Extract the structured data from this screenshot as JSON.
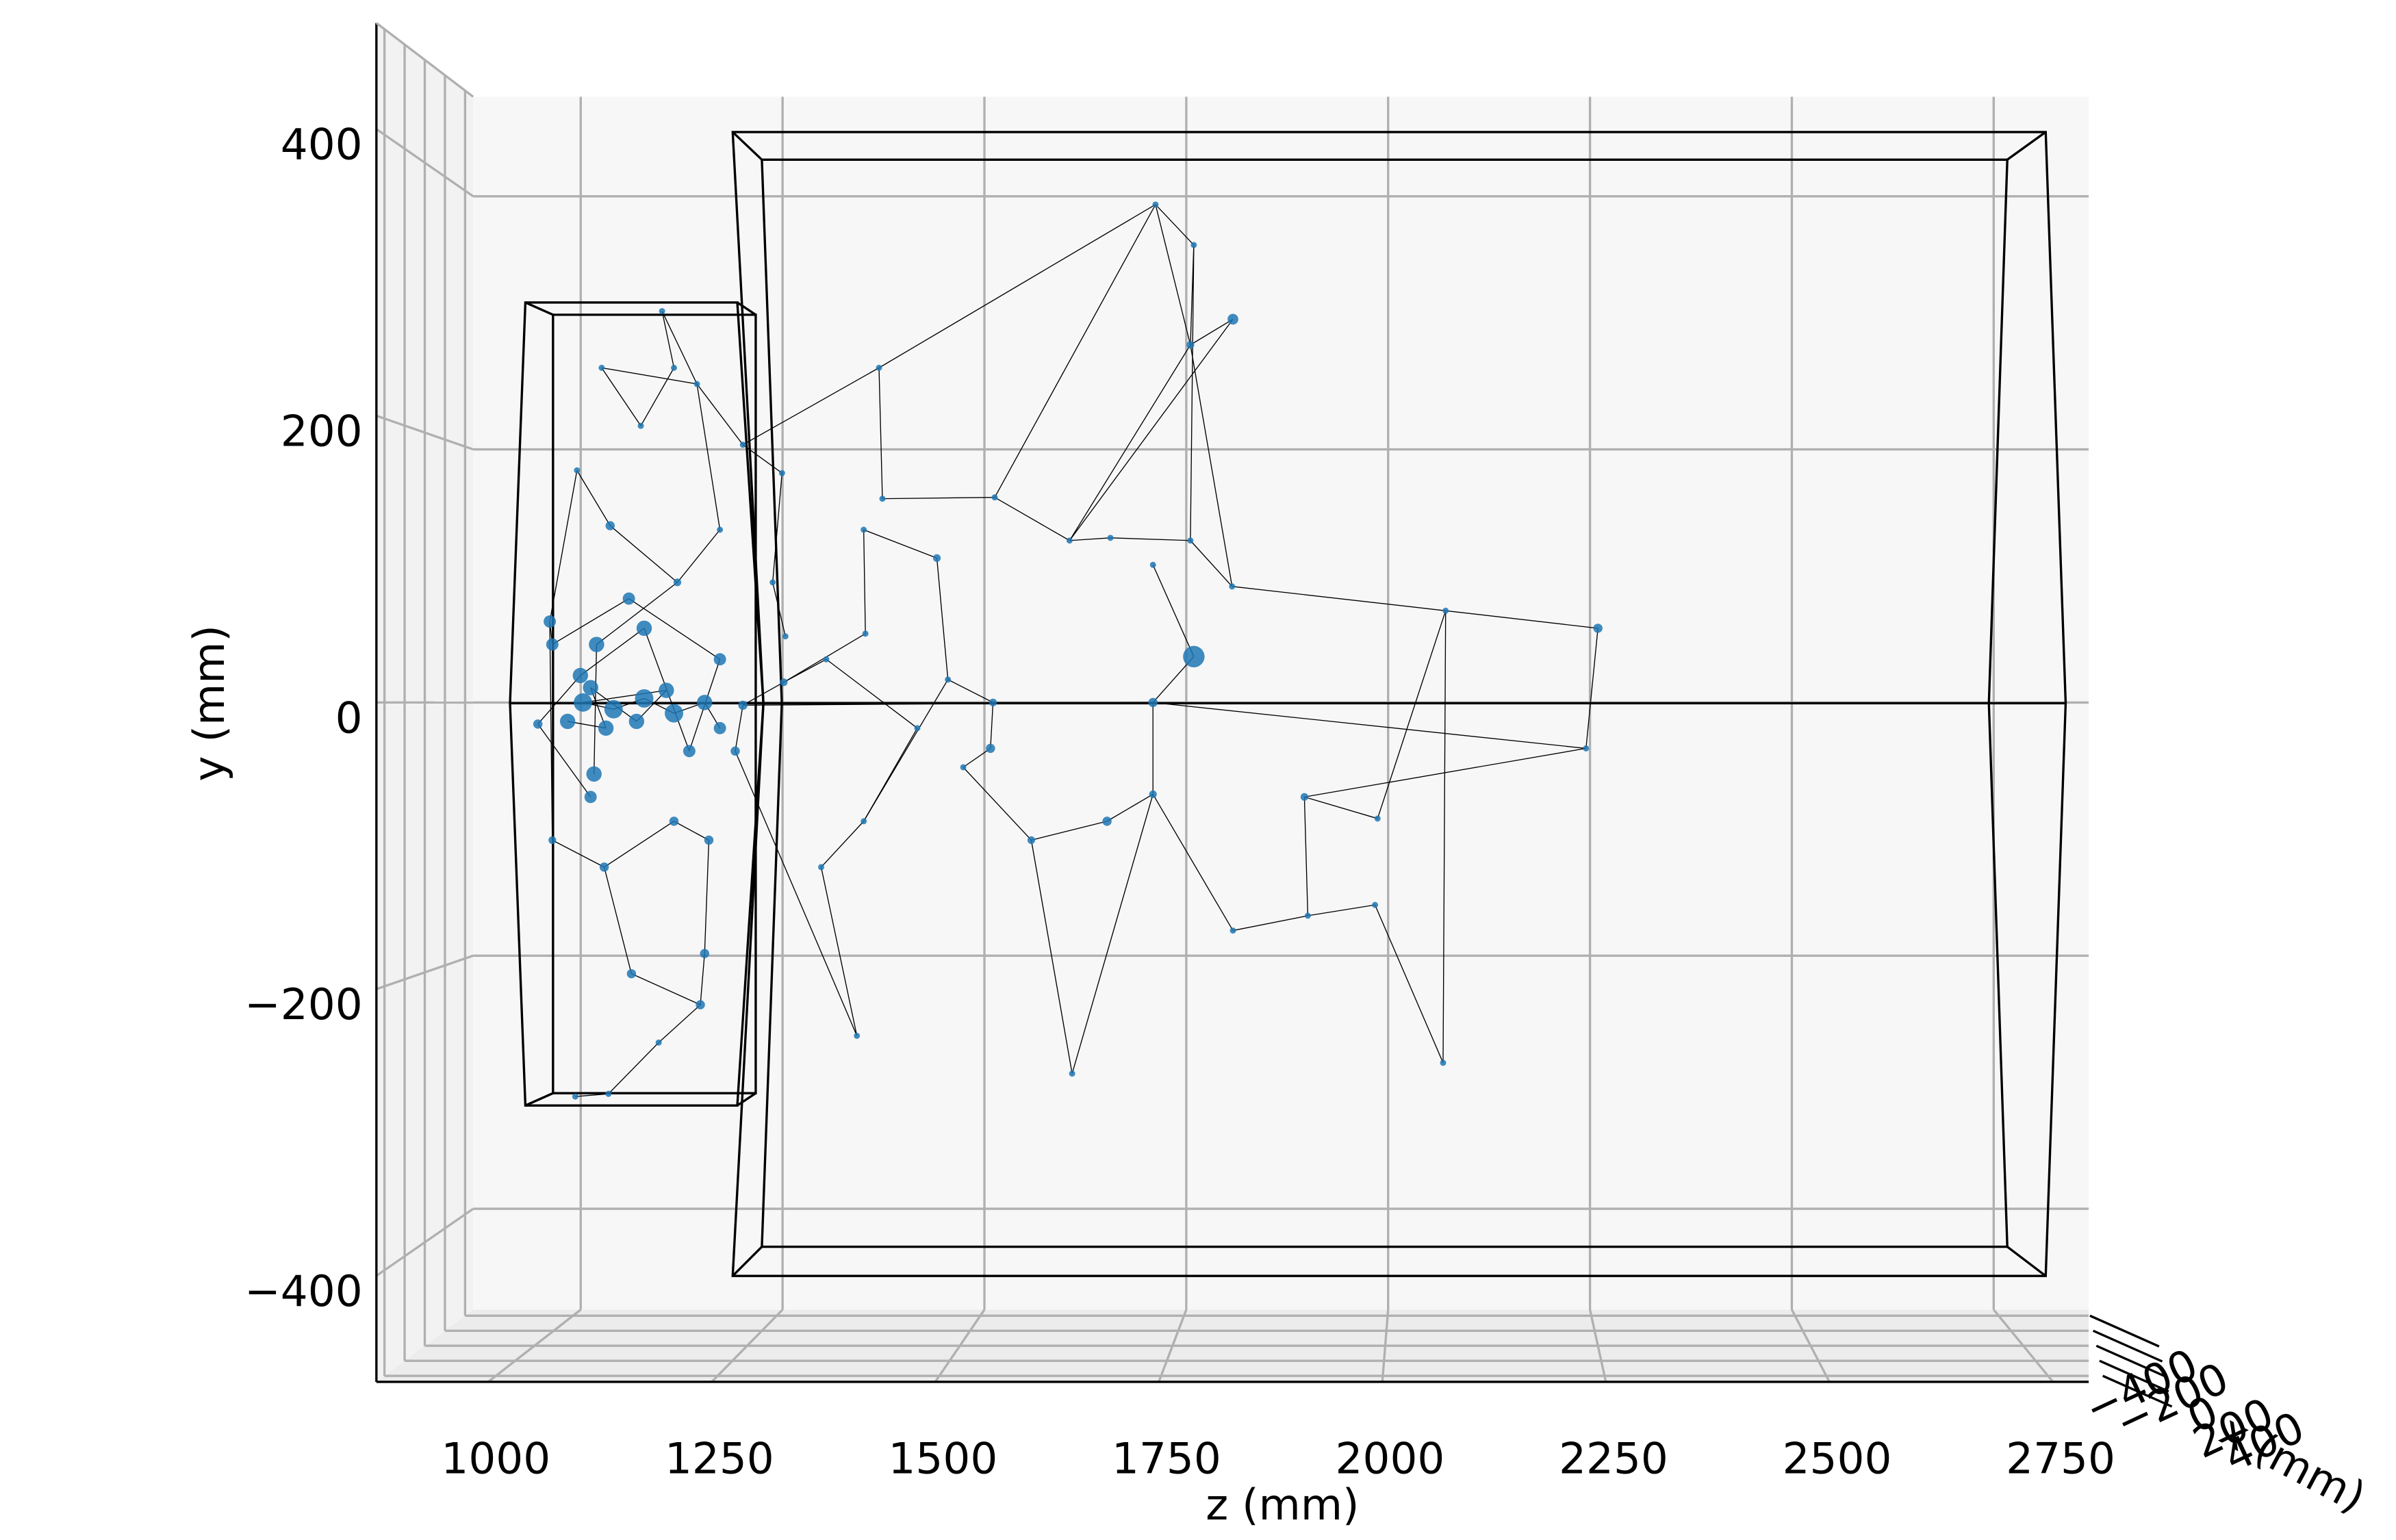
{
  "chart_data": {
    "type": "scatter3d",
    "xlabel": "z (mm)",
    "ylabel": "y (mm)",
    "depth_label": "x (mm)",
    "xlim": [
      875,
      2790
    ],
    "ylim": [
      -474,
      474
    ],
    "depth_lim": [
      -480,
      480
    ],
    "xticks": [
      1000,
      1250,
      1500,
      1750,
      2000,
      2250,
      2500,
      2750
    ],
    "yticks": [
      {
        "value": -400,
        "label": "−400"
      },
      {
        "value": -200,
        "label": "−200"
      },
      0,
      200,
      400
    ],
    "depth_ticks": [
      {
        "value": -400,
        "label": "−400"
      },
      {
        "value": -200,
        "label": "−200"
      },
      0,
      200,
      400
    ],
    "grid": true,
    "color": "#1f77b4",
    "edge_color": "#000000",
    "x": [
      1821,
      1775,
      1730,
      1771,
      1775,
      1677,
      1629,
      1541,
      1473,
      1405,
      1387,
      1409,
      1820,
      1771,
      1727,
      2071,
      2250,
      2236,
      2068,
      1988,
      1909,
      1905,
      1991,
      1821,
      1632,
      1584,
      1673,
      1727,
      1727,
      1539,
      1536,
      1504,
      1450,
      1387,
      1379,
      1337,
      1293,
      1343,
      1389,
      1486,
      1295,
      1291,
      1245,
      1280,
      1191,
      1150,
      1164,
      1125,
      1079,
      1050,
      1089,
      1168,
      1218,
      1018,
      1021,
      1082,
      1114,
      1195,
      1200,
      1205,
      1164,
      1048,
      1087,
      1146,
      1236,
      1245,
      1066,
      1004,
      1054,
      1129,
      1182,
      1218,
      1111,
      1021,
      1057,
      1093,
      1129,
      1164,
      1039,
      1084,
      1066,
      1120,
      1155,
      1200,
      1218,
      1070,
      1073
    ],
    "values": [
      284,
      339,
      369,
      265,
      34,
      122,
      120,
      152,
      107,
      248,
      128,
      151,
      86,
      120,
      102,
      68,
      55,
      -34,
      -267,
      -150,
      -158,
      -70,
      -86,
      -169,
      -275,
      -102,
      -88,
      -68,
      0,
      0,
      -34,
      -48,
      -19,
      -88,
      -247,
      -122,
      15,
      32,
      51,
      17,
      49,
      170,
      191,
      89,
      236,
      290,
      248,
      205,
      248,
      172,
      131,
      89,
      128,
      60,
      -102,
      -122,
      -201,
      -224,
      -186,
      -102,
      -88,
      -292,
      -290,
      -252,
      -36,
      -2,
      -70,
      -16,
      20,
      55,
      -36,
      32,
      77,
      43,
      0,
      -5,
      3,
      -8,
      -14,
      -19,
      11,
      -14,
      9,
      0,
      -19,
      -53,
      43
    ],
    "sizes": [
      3.5,
      2,
      2,
      2.5,
      7,
      2,
      2,
      2,
      2.5,
      2,
      2,
      2,
      2,
      2,
      2,
      2,
      3,
      2,
      2,
      2,
      2,
      2.5,
      2,
      2,
      2,
      2.5,
      3,
      2.5,
      3,
      2.5,
      3,
      2,
      2,
      2,
      2,
      2,
      2.5,
      2,
      2,
      2,
      2,
      2,
      2,
      2,
      2,
      2,
      2,
      2,
      2,
      2,
      3,
      2.5,
      2,
      4,
      2.5,
      3,
      3,
      3,
      3,
      3,
      3,
      2,
      2,
      2,
      3,
      3,
      4,
      3,
      5,
      5,
      4,
      4,
      4,
      4,
      6,
      6,
      6,
      6,
      5,
      5,
      5,
      5,
      5,
      5,
      4,
      5,
      5
    ],
    "edges": [
      [
        0,
        3
      ],
      [
        3,
        2
      ],
      [
        2,
        1
      ],
      [
        1,
        3
      ],
      [
        2,
        9
      ],
      [
        2,
        7
      ],
      [
        3,
        6
      ],
      [
        0,
        6
      ],
      [
        1,
        13
      ],
      [
        9,
        42
      ],
      [
        9,
        11
      ],
      [
        10,
        8
      ],
      [
        11,
        7
      ],
      [
        7,
        6
      ],
      [
        6,
        5
      ],
      [
        5,
        13
      ],
      [
        13,
        12
      ],
      [
        14,
        4
      ],
      [
        4,
        28
      ],
      [
        28,
        27
      ],
      [
        28,
        29
      ],
      [
        29,
        30
      ],
      [
        30,
        31
      ],
      [
        31,
        25
      ],
      [
        25,
        24
      ],
      [
        24,
        27
      ],
      [
        27,
        23
      ],
      [
        23,
        20
      ],
      [
        20,
        19
      ],
      [
        19,
        18
      ],
      [
        18,
        15
      ],
      [
        15,
        16
      ],
      [
        16,
        17
      ],
      [
        17,
        21
      ],
      [
        21,
        22
      ],
      [
        22,
        15
      ],
      [
        15,
        12
      ],
      [
        20,
        21
      ],
      [
        28,
        17
      ],
      [
        26,
        27
      ],
      [
        26,
        25
      ],
      [
        8,
        39
      ],
      [
        39,
        29
      ],
      [
        32,
        33
      ],
      [
        33,
        35
      ],
      [
        35,
        34
      ],
      [
        34,
        64
      ],
      [
        32,
        37
      ],
      [
        37,
        36
      ],
      [
        36,
        38
      ],
      [
        38,
        10
      ],
      [
        40,
        43
      ],
      [
        43,
        41
      ],
      [
        41,
        42
      ],
      [
        42,
        44
      ],
      [
        44,
        45
      ],
      [
        45,
        46
      ],
      [
        46,
        47
      ],
      [
        47,
        48
      ],
      [
        48,
        44
      ],
      [
        49,
        50
      ],
      [
        50,
        51
      ],
      [
        51,
        52
      ],
      [
        52,
        44
      ],
      [
        53,
        49
      ],
      [
        53,
        54
      ],
      [
        54,
        55
      ],
      [
        55,
        56
      ],
      [
        56,
        57
      ],
      [
        57,
        58
      ],
      [
        58,
        59
      ],
      [
        59,
        60
      ],
      [
        60,
        55
      ],
      [
        61,
        62
      ],
      [
        62,
        63
      ],
      [
        63,
        57
      ],
      [
        64,
        65
      ],
      [
        65,
        36
      ],
      [
        66,
        67
      ],
      [
        67,
        68
      ],
      [
        68,
        69
      ],
      [
        69,
        70
      ],
      [
        70,
        71
      ],
      [
        71,
        72
      ],
      [
        72,
        73
      ],
      [
        74,
        75
      ],
      [
        75,
        76
      ],
      [
        76,
        77
      ],
      [
        77,
        83
      ],
      [
        83,
        84
      ],
      [
        78,
        79
      ],
      [
        79,
        80
      ],
      [
        80,
        81
      ],
      [
        81,
        82
      ],
      [
        82,
        74
      ],
      [
        85,
        86
      ],
      [
        86,
        51
      ],
      [
        73,
        53
      ],
      [
        65,
        28
      ],
      [
        39,
        33
      ],
      [
        12,
        3
      ]
    ]
  }
}
